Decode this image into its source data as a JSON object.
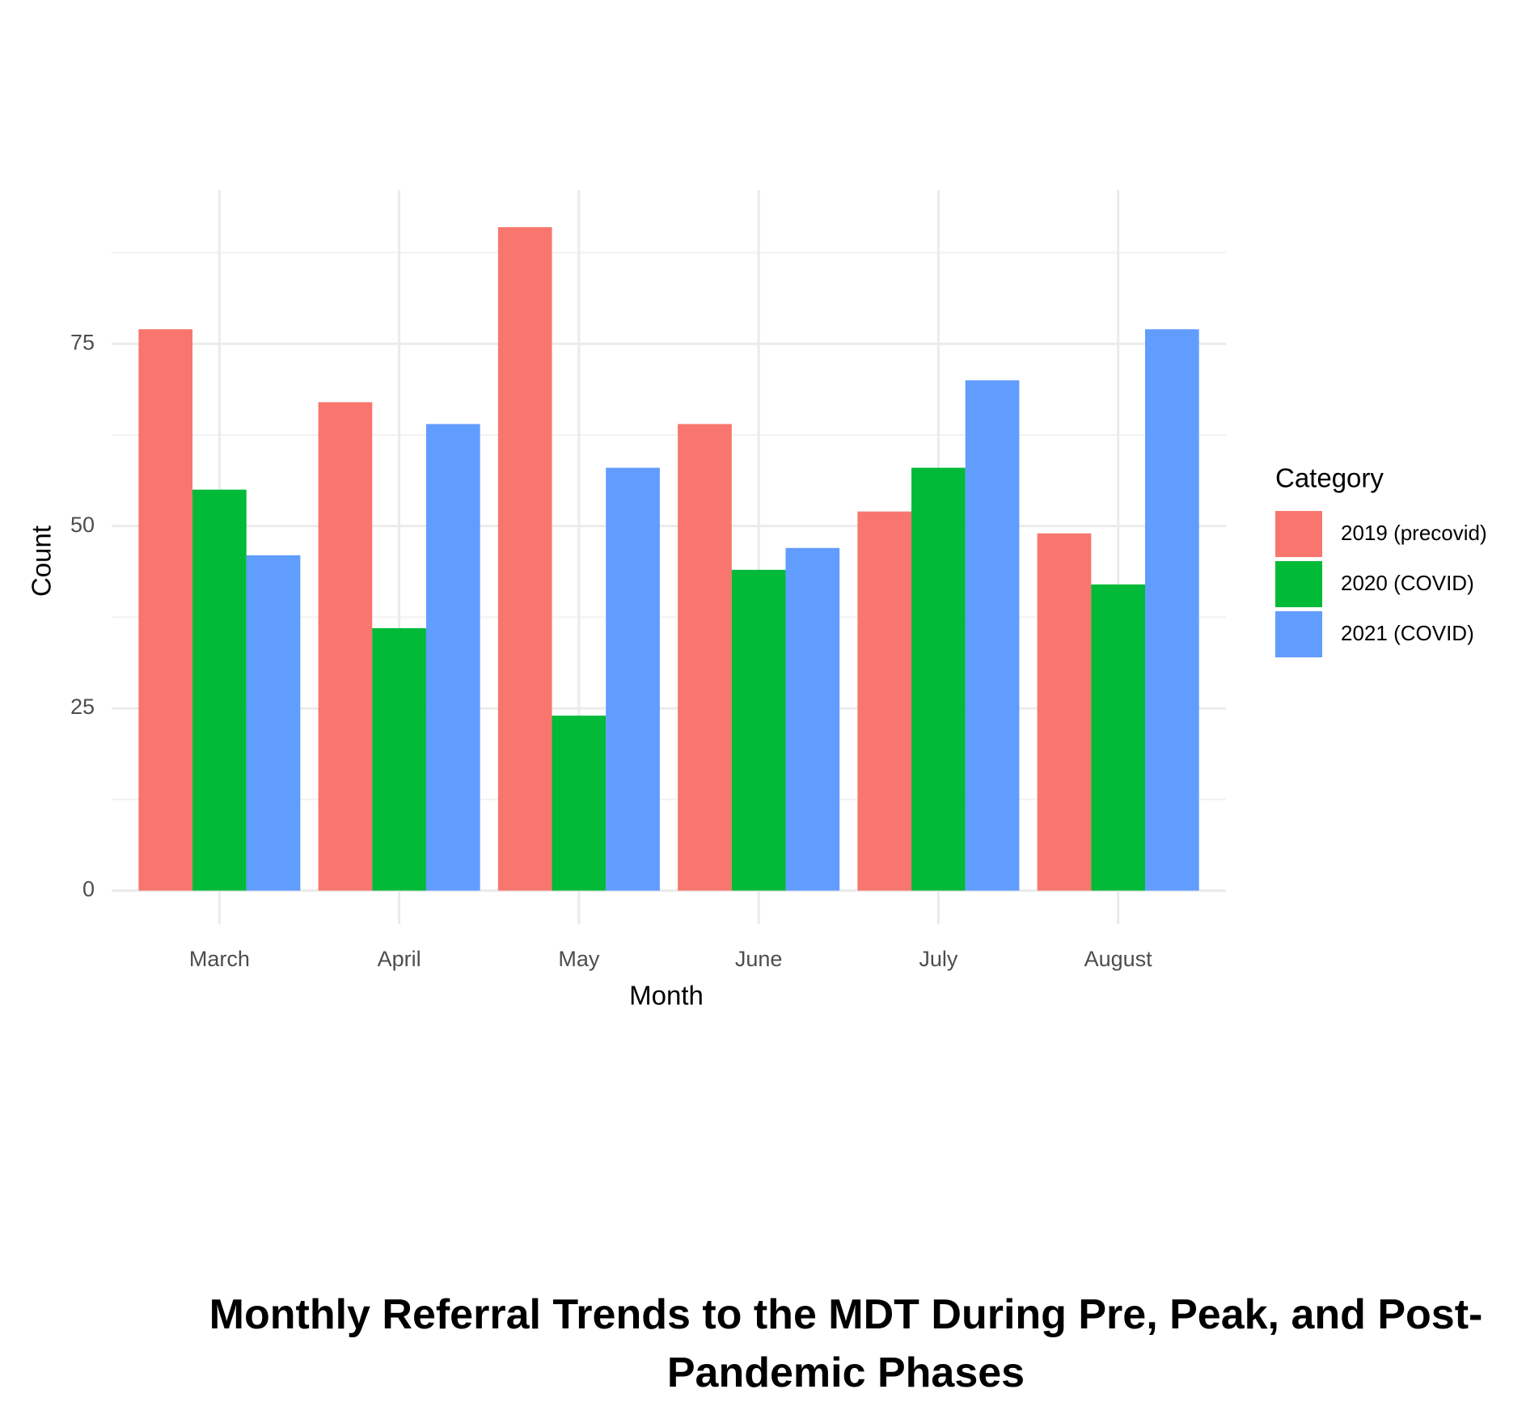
{
  "chart_data": {
    "type": "bar",
    "title": "Monthly Referral Trends to the MDT During Pre, Peak, and Post-Pandemic Phases",
    "x_label": "Month",
    "y_label": "Count",
    "categories": [
      "March",
      "April",
      "May",
      "June",
      "July",
      "August"
    ],
    "series": [
      {
        "name": "2019 (precovid)",
        "color": "#F8766D",
        "values": [
          77,
          67,
          91,
          64,
          52,
          49
        ]
      },
      {
        "name": "2020 (COVID)",
        "color": "#00BA38",
        "values": [
          55,
          36,
          24,
          44,
          58,
          42
        ]
      },
      {
        "name": "2021 (COVID)",
        "color": "#619CFF",
        "values": [
          46,
          64,
          58,
          47,
          70,
          77
        ]
      }
    ],
    "legend_title": "Category",
    "legend": "right",
    "ylim": [
      -4.6,
      96.1
    ],
    "yticks": [
      0,
      25,
      50,
      75
    ],
    "minor_yticks": [
      12.5,
      37.5,
      62.5,
      87.5
    ],
    "grid": true
  }
}
